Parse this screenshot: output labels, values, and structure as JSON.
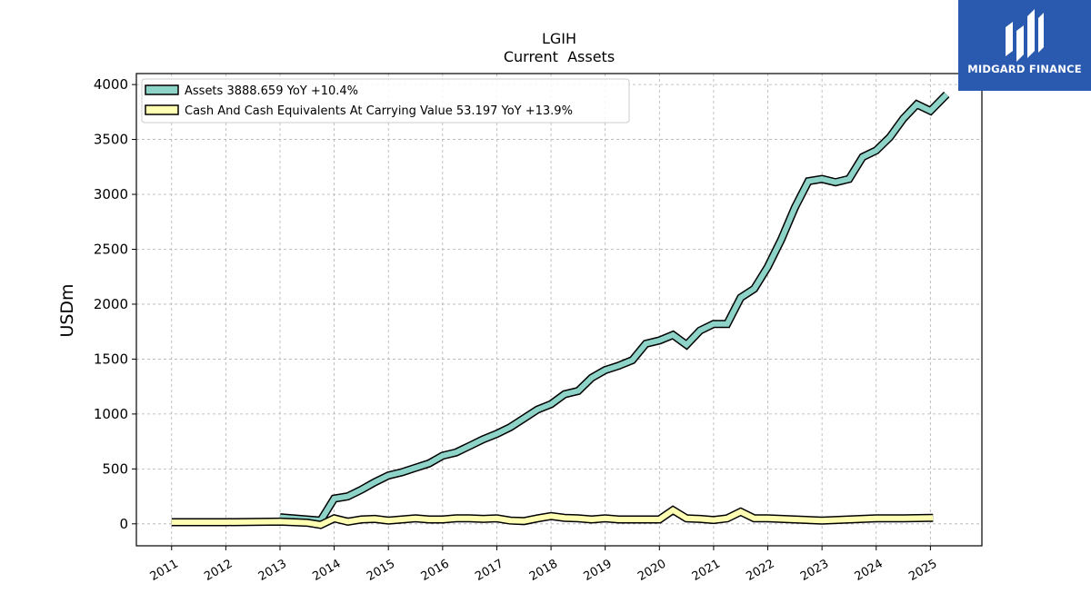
{
  "brand": {
    "name": "MIDGARD FINANCE",
    "color": "#2a5ab0"
  },
  "chart_data": {
    "type": "line",
    "title": "LGIH",
    "subtitle": "Current  Assets",
    "ylabel": "USDm",
    "xlabel": "",
    "ylim": [
      -200,
      4100
    ],
    "xlim": [
      2010.35,
      2025.95
    ],
    "yticks": [
      0,
      500,
      1000,
      1500,
      2000,
      2500,
      3000,
      3500,
      4000
    ],
    "xticks": [
      2011,
      2012,
      2013,
      2014,
      2015,
      2016,
      2017,
      2018,
      2019,
      2020,
      2021,
      2022,
      2023,
      2024,
      2025
    ],
    "grid": true,
    "legend_position": "top-left",
    "series": [
      {
        "name": "Assets  3888.659 YoY +10.4%",
        "color": "#8dd3c7",
        "x": [
          2013.0,
          2013.75,
          2014.0,
          2014.25,
          2014.5,
          2014.75,
          2015.0,
          2015.25,
          2015.5,
          2015.75,
          2016.0,
          2016.25,
          2016.5,
          2016.75,
          2017.0,
          2017.25,
          2017.5,
          2017.75,
          2018.0,
          2018.25,
          2018.5,
          2018.75,
          2019.0,
          2019.25,
          2019.5,
          2019.75,
          2020.0,
          2020.25,
          2020.5,
          2020.75,
          2021.0,
          2021.25,
          2021.5,
          2021.75,
          2022.0,
          2022.25,
          2022.5,
          2022.75,
          2023.0,
          2023.25,
          2023.5,
          2023.75,
          2024.0,
          2024.25,
          2024.5,
          2024.75,
          2025.0,
          2025.3
        ],
        "values": [
          60,
          30,
          230,
          250,
          310,
          380,
          440,
          470,
          510,
          550,
          620,
          650,
          710,
          770,
          820,
          880,
          960,
          1040,
          1090,
          1180,
          1210,
          1330,
          1400,
          1440,
          1490,
          1640,
          1670,
          1720,
          1630,
          1760,
          1820,
          1820,
          2060,
          2140,
          2340,
          2590,
          2880,
          3120,
          3140,
          3110,
          3140,
          3340,
          3400,
          3520,
          3690,
          3820,
          3760,
          3910
        ]
      },
      {
        "name": "Cash And Cash Equivalents At Carrying Value  53.197 YoY +13.9%",
        "color": "#ffffb3",
        "x": [
          2011.0,
          2012.0,
          2013.0,
          2013.5,
          2013.75,
          2014.0,
          2014.25,
          2014.5,
          2014.75,
          2015.0,
          2015.25,
          2015.5,
          2015.75,
          2016.0,
          2016.25,
          2016.5,
          2016.75,
          2017.0,
          2017.25,
          2017.5,
          2017.75,
          2018.0,
          2018.25,
          2018.5,
          2018.75,
          2019.0,
          2019.25,
          2019.5,
          2019.75,
          2020.0,
          2020.25,
          2020.5,
          2020.75,
          2021.0,
          2021.25,
          2021.5,
          2021.75,
          2022.0,
          2022.5,
          2023.0,
          2023.5,
          2024.0,
          2024.5,
          2025.05
        ],
        "values": [
          15,
          15,
          20,
          10,
          -10,
          50,
          20,
          40,
          45,
          30,
          40,
          50,
          40,
          40,
          50,
          50,
          45,
          50,
          30,
          25,
          50,
          70,
          55,
          50,
          40,
          50,
          40,
          40,
          40,
          40,
          125,
          50,
          45,
          35,
          50,
          110,
          50,
          50,
          40,
          30,
          40,
          50,
          50,
          55
        ]
      }
    ]
  }
}
